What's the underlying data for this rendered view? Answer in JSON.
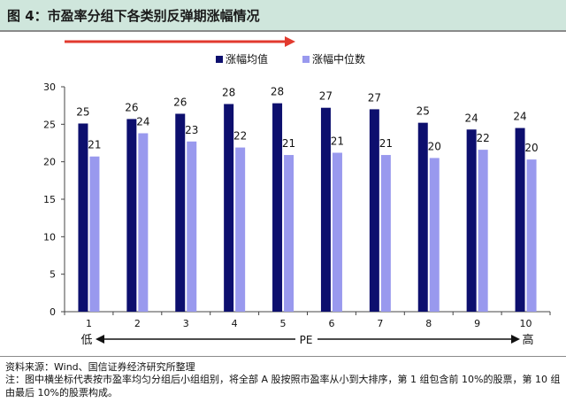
{
  "title": "图 4：市盈率分组下各类别反弹期涨幅情况",
  "source": "资料来源：Wind、国信证券经济研究所整理",
  "note": "注：图中横坐标代表按市盈率均匀分组后小组组别，将全部 A 股按照市盈率从小到大排序，第 1 组包含前 10%的股票，第 10 组由最后 10%的股票构成。",
  "colors": {
    "mean": "#0d0f6e",
    "median": "#9999ee",
    "arrow_red": "#e23a2e",
    "title_bg": "#cfe6dc"
  },
  "chart_data": {
    "type": "bar",
    "categories": [
      "1",
      "2",
      "3",
      "4",
      "5",
      "6",
      "7",
      "8",
      "9",
      "10"
    ],
    "series": [
      {
        "name": "涨幅均值",
        "values": [
          25.1,
          25.7,
          26.4,
          27.7,
          27.8,
          27.2,
          27.0,
          25.2,
          24.3,
          24.5
        ],
        "labels": [
          "25",
          "26",
          "26",
          "28",
          "28",
          "27",
          "27",
          "25",
          "24",
          "24"
        ]
      },
      {
        "name": "涨幅中位数",
        "values": [
          20.7,
          23.8,
          22.7,
          21.9,
          20.9,
          21.2,
          20.9,
          20.5,
          21.6,
          20.3
        ],
        "labels": [
          "21",
          "24",
          "23",
          "22",
          "21",
          "21",
          "21",
          "20",
          "22",
          "20"
        ]
      }
    ],
    "ylim": [
      0,
      30
    ],
    "yticks": [
      "0",
      "5",
      "10",
      "15",
      "20",
      "25",
      "30"
    ],
    "xlabel": "PE",
    "x_low_label": "低",
    "x_high_label": "高",
    "legend_position": "top-center",
    "grid": false
  }
}
